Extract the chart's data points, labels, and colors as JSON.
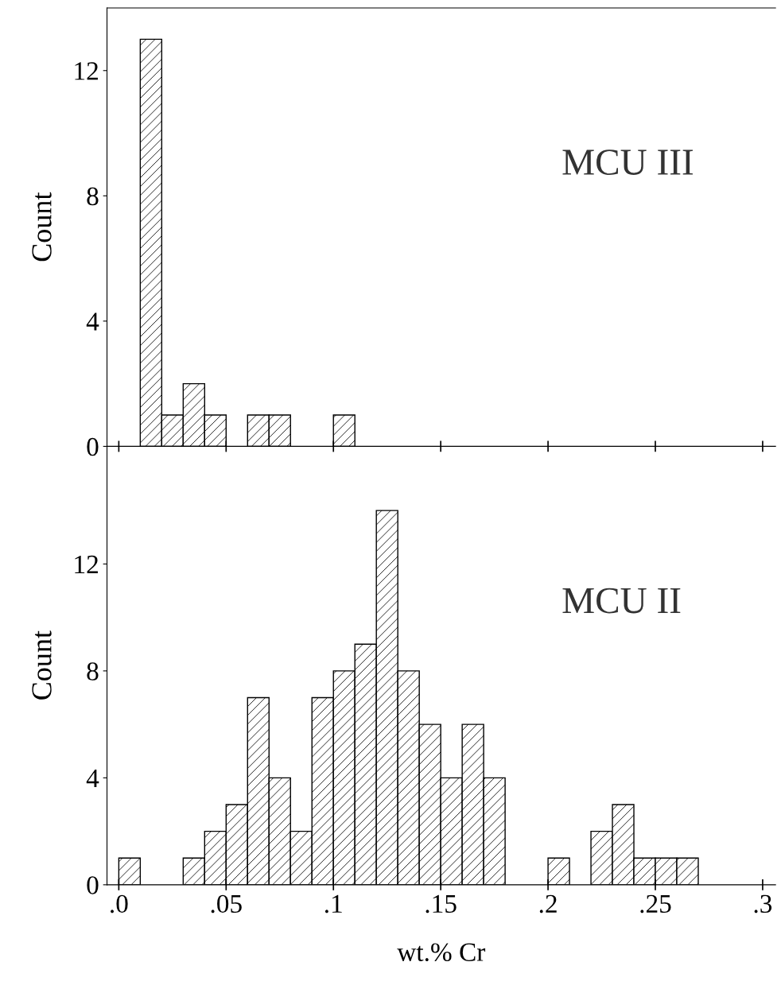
{
  "chart_data": [
    {
      "type": "histogram",
      "ylabel": "Count",
      "annotations": [
        "MCU III"
      ],
      "color": "#000000",
      "bins": [
        0.01,
        0.02,
        0.03,
        0.04,
        0.05,
        0.06,
        0.07,
        0.08,
        0.09,
        0.1,
        0.11
      ],
      "values": [
        13,
        1,
        2,
        1,
        0,
        1,
        1,
        0,
        0,
        1
      ],
      "xlim": [
        -0.0055,
        0.306
      ],
      "xticks": [
        0,
        0.05,
        0.1,
        0.15,
        0.2,
        0.25,
        0.3
      ],
      "ylim": [
        0,
        14
      ],
      "yticks": [
        0,
        4,
        8,
        12
      ],
      "tick_labels": "y",
      "grid": false
    },
    {
      "type": "histogram",
      "ylabel": "Count",
      "xlabel": "wt.% Cr",
      "annotations": [
        "MCU II"
      ],
      "color": "#000000",
      "bins": [
        0,
        0.01,
        0.02,
        0.03,
        0.04,
        0.05,
        0.06,
        0.07,
        0.08,
        0.09,
        0.1,
        0.11,
        0.12,
        0.13,
        0.14,
        0.15,
        0.16,
        0.17,
        0.18,
        0.19,
        0.2,
        0.21,
        0.22,
        0.23,
        0.24,
        0.25,
        0.26,
        0.27
      ],
      "values": [
        1,
        0,
        0,
        1,
        2,
        3,
        7,
        4,
        2,
        7,
        8,
        9,
        14,
        8,
        6,
        4,
        6,
        4,
        0,
        0,
        1,
        0,
        2,
        3,
        1,
        1,
        1
      ],
      "xlim": [
        -0.0055,
        0.306
      ],
      "xticks": [
        {
          "value": 0,
          "label": ".0"
        },
        {
          "value": 0.05,
          "label": ".05"
        },
        {
          "value": 0.1,
          "label": ".1"
        },
        {
          "value": 0.15,
          "label": ".15"
        },
        {
          "value": 0.2,
          "label": ".2"
        },
        {
          "value": 0.25,
          "label": ".25"
        },
        {
          "value": 0.3,
          "label": ".3"
        }
      ],
      "ylim": [
        0,
        16.4
      ],
      "yticks": [
        0,
        4,
        8,
        12
      ],
      "grid": false
    }
  ]
}
